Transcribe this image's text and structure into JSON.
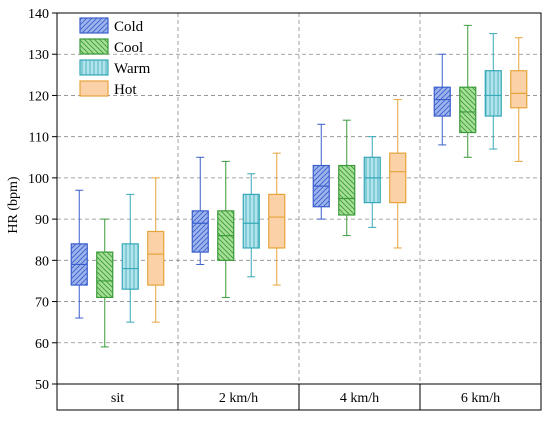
{
  "chart_data": {
    "type": "boxplot",
    "ylabel": "HR (bpm)",
    "ylim": [
      50,
      140
    ],
    "yticks": [
      50,
      60,
      70,
      80,
      90,
      100,
      110,
      120,
      130,
      140
    ],
    "grid": true,
    "legend_placement": "top-left",
    "categories": [
      "sit",
      "2 km/h",
      "4 km/h",
      "6 km/h"
    ],
    "series": [
      {
        "name": "Cold",
        "color": "#3a5fcd",
        "fill": "#9db4ec",
        "hatch": "diagonal-right",
        "boxes": [
          {
            "min": 66,
            "q1": 74,
            "median": 79,
            "q3": 84,
            "max": 97
          },
          {
            "min": 79,
            "q1": 82,
            "median": 89,
            "q3": 92,
            "max": 105
          },
          {
            "min": 90,
            "q1": 93,
            "median": 98,
            "q3": 103,
            "max": 113
          },
          {
            "min": 108,
            "q1": 115,
            "median": 119,
            "q3": 122,
            "max": 130
          }
        ]
      },
      {
        "name": "Cool",
        "color": "#3a9a3a",
        "fill": "#a6df95",
        "hatch": "diagonal-left",
        "boxes": [
          {
            "min": 59,
            "q1": 71,
            "median": 75,
            "q3": 82,
            "max": 90
          },
          {
            "min": 71,
            "q1": 80,
            "median": 86,
            "q3": 92,
            "max": 104
          },
          {
            "min": 86,
            "q1": 91,
            "median": 95,
            "q3": 103,
            "max": 114
          },
          {
            "min": 105,
            "q1": 111,
            "median": 116,
            "q3": 122,
            "max": 137
          }
        ]
      },
      {
        "name": "Warm",
        "color": "#35a8b8",
        "fill": "#b3e4ec",
        "hatch": "vertical",
        "boxes": [
          {
            "min": 65,
            "q1": 73,
            "median": 78,
            "q3": 84,
            "max": 96
          },
          {
            "min": 76,
            "q1": 83,
            "median": 89,
            "q3": 96,
            "max": 101
          },
          {
            "min": 88,
            "q1": 94,
            "median": 100,
            "q3": 105,
            "max": 110
          },
          {
            "min": 107,
            "q1": 115,
            "median": 120,
            "q3": 126,
            "max": 135
          }
        ]
      },
      {
        "name": "Hot",
        "color": "#e5a43a",
        "fill": "#fbd2a8",
        "hatch": "none",
        "boxes": [
          {
            "min": 65,
            "q1": 74,
            "median": 81.5,
            "q3": 87,
            "max": 100
          },
          {
            "min": 74,
            "q1": 83,
            "median": 90.5,
            "q3": 96,
            "max": 106
          },
          {
            "min": 83,
            "q1": 94,
            "median": 101.5,
            "q3": 106,
            "max": 119
          },
          {
            "min": 104,
            "q1": 117,
            "median": 120.5,
            "q3": 126,
            "max": 134
          }
        ]
      }
    ]
  }
}
